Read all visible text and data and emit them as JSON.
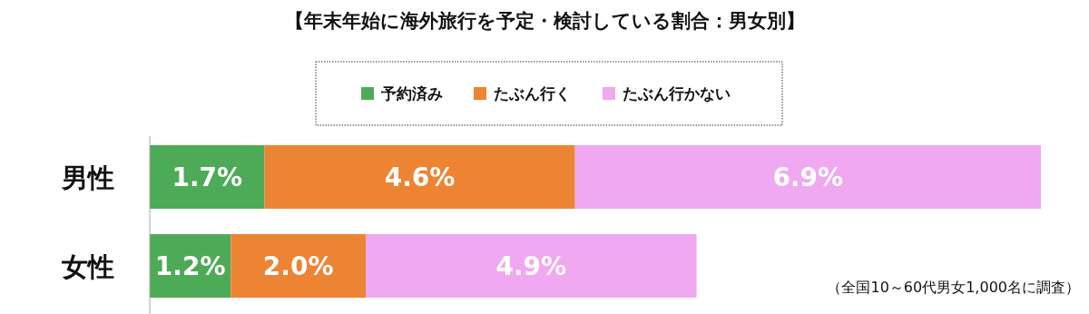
{
  "chart_data": {
    "type": "bar",
    "orientation": "horizontal",
    "stacked": true,
    "legend": "top",
    "title": "【年末年始に海外旅行を予定・検討している割合：男女別】",
    "categories": [
      "男性",
      "女性"
    ],
    "series": [
      {
        "name": "予約済み",
        "color": "#4dab57",
        "values": [
          1.7,
          1.2
        ],
        "value_labels": [
          "1.7%",
          "1.2%"
        ]
      },
      {
        "name": "たぶん行く",
        "color": "#ed8434",
        "values": [
          4.6,
          2.0
        ],
        "value_labels": [
          "4.6%",
          "2.0%"
        ]
      },
      {
        "name": "たぶん行かない",
        "color": "#f0a8f0",
        "values": [
          6.9,
          4.9
        ],
        "value_labels": [
          "6.9%",
          "4.9%"
        ]
      }
    ],
    "annotations": [
      "（全国10～60代男女1,000名に調査）"
    ]
  }
}
